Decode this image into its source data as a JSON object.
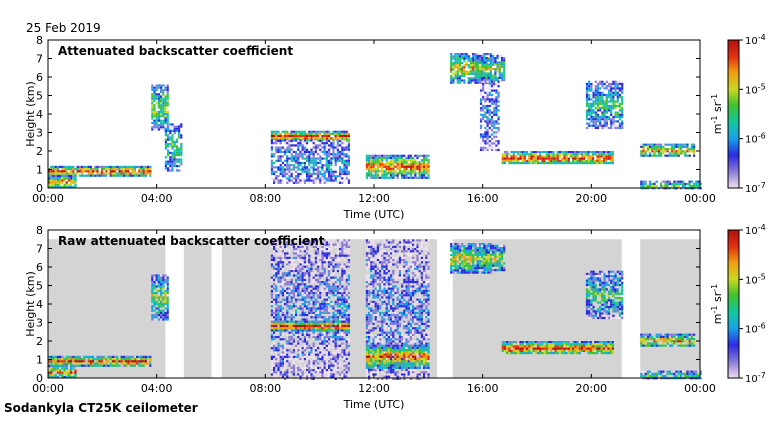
{
  "header": {
    "date": "25 Feb 2019"
  },
  "footer": {
    "site_label": "Sodankyla CT25K ceilometer"
  },
  "colormap": [
    "#f0e0f0",
    "#8a7ad8",
    "#2a2ae0",
    "#1aa0e8",
    "#10c8a0",
    "#40c030",
    "#c8d820",
    "#f0a010",
    "#e03010",
    "#b01010"
  ],
  "colors": {
    "background_noise": "#d4d4d4",
    "axis": "#000000"
  },
  "chart_data": [
    {
      "type": "heatmap",
      "title": "Attenuated backscatter coefficient",
      "xlabel": "Time (UTC)",
      "ylabel": "Height (km)",
      "xticks": [
        "00:00",
        "04:00",
        "08:00",
        "12:00",
        "16:00",
        "20:00",
        "00:00"
      ],
      "xlim_hours": [
        0,
        24
      ],
      "ylim_km": [
        0,
        8
      ],
      "yticks": [
        0,
        1,
        2,
        3,
        4,
        5,
        6,
        7,
        8
      ],
      "noise_background": false,
      "colorbar": {
        "label": "m-1 sr-1",
        "scale": "log",
        "range": [
          1e-07,
          0.0001
        ],
        "tick_labels": [
          "10-7",
          "10-6",
          "10-5",
          "10-4"
        ]
      },
      "features": [
        {
          "name": "boundary-layer",
          "t": [
            0.0,
            3.8
          ],
          "h": [
            0.7,
            1.2
          ],
          "intensity": 0.9
        },
        {
          "name": "surface-layer",
          "t": [
            0.0,
            1.0
          ],
          "h": [
            0.0,
            0.7
          ],
          "intensity": 0.8
        },
        {
          "name": "cloud-4h",
          "t": [
            3.8,
            4.4
          ],
          "h": [
            3.2,
            5.6
          ],
          "intensity": 0.6
        },
        {
          "name": "cloud-4h-tail",
          "t": [
            4.3,
            4.9
          ],
          "h": [
            1.0,
            3.5
          ],
          "intensity": 0.5
        },
        {
          "name": "cloud-8h-base",
          "t": [
            8.2,
            11.1
          ],
          "h": [
            2.6,
            3.1
          ],
          "intensity": 0.95
        },
        {
          "name": "precip-8h",
          "t": [
            8.2,
            11.1
          ],
          "h": [
            0.3,
            2.6
          ],
          "intensity": 0.35
        },
        {
          "name": "cloud-12h",
          "t": [
            11.7,
            14.0
          ],
          "h": [
            0.6,
            1.8
          ],
          "intensity": 0.85
        },
        {
          "name": "cloud-15h-high",
          "t": [
            14.8,
            16.3
          ],
          "h": [
            5.7,
            7.3
          ],
          "intensity": 0.7
        },
        {
          "name": "cloud-16h-high",
          "t": [
            15.7,
            16.8
          ],
          "h": [
            5.8,
            7.2
          ],
          "intensity": 0.6
        },
        {
          "name": "fall-streaks-16h",
          "t": [
            15.9,
            16.6
          ],
          "h": [
            2.0,
            5.8
          ],
          "intensity": 0.3
        },
        {
          "name": "cloud-17h-low",
          "t": [
            16.7,
            20.8
          ],
          "h": [
            1.3,
            2.0
          ],
          "intensity": 0.9
        },
        {
          "name": "cloud-19h-mid",
          "t": [
            19.8,
            21.1
          ],
          "h": [
            3.3,
            5.8
          ],
          "intensity": 0.5
        },
        {
          "name": "cloud-22h-low",
          "t": [
            21.8,
            23.8
          ],
          "h": [
            1.7,
            2.4
          ],
          "intensity": 0.75
        },
        {
          "name": "surface-22h",
          "t": [
            21.8,
            24.0
          ],
          "h": [
            0.0,
            0.4
          ],
          "intensity": 0.6
        }
      ]
    },
    {
      "type": "heatmap",
      "title": "Raw attenuated backscatter coefficient",
      "xlabel": "Time (UTC)",
      "ylabel": "Height (km)",
      "xticks": [
        "00:00",
        "04:00",
        "08:00",
        "12:00",
        "16:00",
        "20:00",
        "00:00"
      ],
      "xlim_hours": [
        0,
        24
      ],
      "ylim_km": [
        0,
        8
      ],
      "yticks": [
        0,
        1,
        2,
        3,
        4,
        5,
        6,
        7,
        8
      ],
      "noise_background": true,
      "colorbar": {
        "label": "m-1 sr-1",
        "scale": "log",
        "range": [
          1e-07,
          0.0001
        ],
        "tick_labels": [
          "10-7",
          "10-6",
          "10-5",
          "10-4"
        ]
      },
      "features": [
        {
          "name": "boundary-layer",
          "t": [
            0.0,
            3.8
          ],
          "h": [
            0.7,
            1.2
          ],
          "intensity": 0.9
        },
        {
          "name": "surface-layer",
          "t": [
            0.0,
            1.0
          ],
          "h": [
            0.0,
            0.7
          ],
          "intensity": 0.8
        },
        {
          "name": "cloud-4h",
          "t": [
            3.8,
            4.4
          ],
          "h": [
            3.2,
            5.6
          ],
          "intensity": 0.6
        },
        {
          "name": "noise-block-8h",
          "t": [
            8.2,
            11.1
          ],
          "h": [
            0.0,
            7.5
          ],
          "intensity": 0.25
        },
        {
          "name": "cloud-8h-base",
          "t": [
            8.2,
            11.1
          ],
          "h": [
            2.6,
            3.1
          ],
          "intensity": 0.95
        },
        {
          "name": "noise-block-12h",
          "t": [
            11.7,
            14.0
          ],
          "h": [
            0.0,
            7.5
          ],
          "intensity": 0.25
        },
        {
          "name": "cloud-12h",
          "t": [
            11.7,
            14.0
          ],
          "h": [
            0.6,
            1.8
          ],
          "intensity": 0.85
        },
        {
          "name": "cloud-15h-high",
          "t": [
            14.8,
            16.3
          ],
          "h": [
            5.7,
            7.3
          ],
          "intensity": 0.7
        },
        {
          "name": "cloud-16h-high",
          "t": [
            15.7,
            16.8
          ],
          "h": [
            5.8,
            7.2
          ],
          "intensity": 0.6
        },
        {
          "name": "cloud-17h-low",
          "t": [
            16.7,
            20.8
          ],
          "h": [
            1.3,
            2.0
          ],
          "intensity": 0.9
        },
        {
          "name": "cloud-19h-mid",
          "t": [
            19.8,
            21.1
          ],
          "h": [
            3.3,
            5.8
          ],
          "intensity": 0.5
        },
        {
          "name": "cloud-22h-low",
          "t": [
            21.8,
            23.8
          ],
          "h": [
            1.7,
            2.4
          ],
          "intensity": 0.75
        },
        {
          "name": "surface-22h",
          "t": [
            21.8,
            24.0
          ],
          "h": [
            0.0,
            0.4
          ],
          "intensity": 0.6
        }
      ]
    }
  ]
}
